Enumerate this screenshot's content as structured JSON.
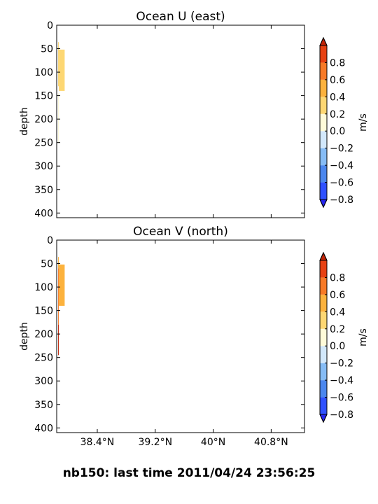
{
  "figure_title": "nb150: last time 2011/04/24 23:56:25",
  "chart_data": [
    {
      "type": "heatmap",
      "title": "Ocean U (east)",
      "ylabel": "depth",
      "ylim": [
        410,
        0
      ],
      "yticks": [
        "0",
        "50",
        "100",
        "150",
        "200",
        "250",
        "300",
        "350",
        "400"
      ],
      "ytick_values": [
        0,
        50,
        100,
        150,
        200,
        250,
        300,
        350,
        400
      ],
      "xlim": [
        37.84,
        41.26
      ],
      "xticks": [
        38.4,
        39.2,
        40,
        40.8
      ],
      "colorbar": {
        "label": "m/s",
        "levels": [
          -0.8,
          -0.6,
          -0.4,
          -0.2,
          0.0,
          0.2,
          0.4,
          0.6,
          0.8
        ],
        "tick_labels": [
          "−0.8",
          "−0.6",
          "−0.4",
          "−0.2",
          "0.0",
          "0.2",
          "0.4",
          "0.6",
          "0.8"
        ],
        "colors": [
          "#2f51ff",
          "#4b87ee",
          "#86bcf5",
          "#d2e8fb",
          "#fffbd9",
          "#fdd773",
          "#fcb23d",
          "#f77a27",
          "#e74112"
        ],
        "under_color": "#2626f0",
        "over_color": "#c02407"
      },
      "cells": [
        {
          "x0": 37.86,
          "x1": 37.87,
          "d0": 36,
          "d1": 130,
          "v": 0.3
        },
        {
          "x0": 37.87,
          "x1": 37.95,
          "d0": 52,
          "d1": 120,
          "v": 0.3
        },
        {
          "x0": 37.87,
          "x1": 37.95,
          "d0": 120,
          "d1": 140,
          "v": 0.3
        },
        {
          "x0": 37.86,
          "x1": 37.87,
          "d0": 145,
          "d1": 250,
          "v": 0.1
        }
      ]
    },
    {
      "type": "heatmap",
      "title": "Ocean V (north)",
      "ylabel": "depth",
      "ylim": [
        410,
        0
      ],
      "yticks": [
        "0",
        "50",
        "100",
        "150",
        "200",
        "250",
        "300",
        "350",
        "400"
      ],
      "ytick_values": [
        0,
        50,
        100,
        150,
        200,
        250,
        300,
        350,
        400
      ],
      "xlim": [
        37.84,
        41.26
      ],
      "xticks": [
        38.4,
        39.2,
        40,
        40.8
      ],
      "xtick_labels": [
        "38.4°N",
        "39.2°N",
        "40°N",
        "40.8°N"
      ],
      "colorbar": {
        "label": "m/s",
        "levels": [
          -0.8,
          -0.6,
          -0.4,
          -0.2,
          0.0,
          0.2,
          0.4,
          0.6,
          0.8
        ],
        "tick_labels": [
          "−0.8",
          "−0.6",
          "−0.4",
          "−0.2",
          "0.0",
          "0.2",
          "0.4",
          "0.6",
          "0.8"
        ],
        "colors": [
          "#2f51ff",
          "#4b87ee",
          "#86bcf5",
          "#d2e8fb",
          "#fffbd9",
          "#fdd773",
          "#fcb23d",
          "#f77a27",
          "#e74112"
        ],
        "under_color": "#2626f0",
        "over_color": "#c02407"
      },
      "cells": [
        {
          "x0": 37.86,
          "x1": 37.87,
          "d0": 36,
          "d1": 60,
          "v": 0.5
        },
        {
          "x0": 37.87,
          "x1": 37.95,
          "d0": 52,
          "d1": 140,
          "v": 0.5
        },
        {
          "x0": 37.86,
          "x1": 37.87,
          "d0": 60,
          "d1": 180,
          "v": 0.7
        },
        {
          "x0": 37.86,
          "x1": 37.87,
          "d0": 180,
          "d1": 245,
          "v": 0.8
        }
      ]
    }
  ]
}
